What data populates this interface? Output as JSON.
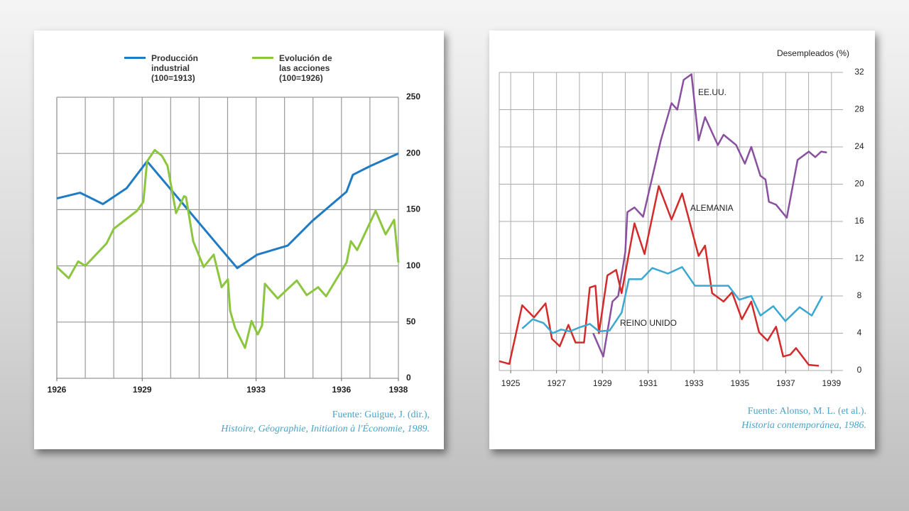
{
  "chart_data": [
    {
      "type": "line",
      "legend": "top",
      "xlim": [
        1926,
        1938
      ],
      "xticks": [
        1926,
        1929,
        1933,
        1936,
        1938
      ],
      "ylim": [
        0,
        250
      ],
      "yticks": [
        0,
        50,
        100,
        150,
        200,
        250
      ],
      "grid": true,
      "series": [
        {
          "name": "Producción\nindustrial\n(100=1913)",
          "color": "#1f7cc4",
          "x": [
            1926,
            1926.82,
            1927.62,
            1928.45,
            1929.17,
            1932.34,
            1933.04,
            1934.11,
            1934.98,
            1936.18,
            1936.4,
            1937.03,
            1938
          ],
          "values": [
            160,
            165,
            155,
            169,
            193,
            98,
            110,
            118,
            140,
            166,
            181,
            189,
            200
          ]
        },
        {
          "name": "Evolución de\nlas acciones\n(100=1926)",
          "color": "#8cc63f",
          "x": [
            1926,
            1926.42,
            1926.75,
            1927.0,
            1927.75,
            1928.0,
            1928.82,
            1929.04,
            1929.17,
            1929.44,
            1929.69,
            1929.89,
            1930.19,
            1930.47,
            1930.54,
            1930.79,
            1931.16,
            1931.51,
            1931.79,
            1932.01,
            1932.09,
            1932.26,
            1932.61,
            1932.84,
            1933.06,
            1933.21,
            1933.31,
            1933.76,
            1934.43,
            1934.78,
            1935.18,
            1935.46,
            1936.18,
            1936.33,
            1936.55,
            1937.2,
            1937.55,
            1937.85,
            1938
          ],
          "values": [
            99,
            89,
            104,
            100,
            120,
            133,
            149,
            157,
            193,
            203,
            198,
            189,
            147,
            162,
            161,
            122,
            99,
            110,
            81,
            88,
            60,
            45,
            27,
            51,
            39,
            47,
            84,
            71,
            87,
            74,
            81,
            73,
            103,
            122,
            114,
            149,
            128,
            141,
            103
          ]
        }
      ],
      "source": [
        "Fuente: Guigue, J. (dir.),",
        "Histoire, Géographie, Initiation à l'Économie, 1989."
      ]
    },
    {
      "type": "line",
      "legend": "inline",
      "y_label": "Desempleados (%)",
      "xlim": [
        1924.5,
        1939.5
      ],
      "xticks": [
        1925,
        1927,
        1929,
        1931,
        1933,
        1935,
        1937,
        1939
      ],
      "ylim": [
        0,
        32
      ],
      "yticks": [
        0,
        4,
        8,
        12,
        16,
        20,
        24,
        28,
        32
      ],
      "grid": true,
      "series": [
        {
          "name": "EE.UU.",
          "color": "#8a4fa0",
          "x": [
            1928.6,
            1929.04,
            1929.44,
            1929.69,
            1930.0,
            1930.09,
            1930.4,
            1930.78,
            1931.55,
            1932.02,
            1932.27,
            1932.55,
            1932.89,
            1933.2,
            1933.48,
            1934.04,
            1934.29,
            1934.84,
            1935.22,
            1935.5,
            1935.9,
            1936.12,
            1936.27,
            1936.58,
            1937.05,
            1937.52,
            1938.01,
            1938.29,
            1938.55,
            1938.8
          ],
          "values": [
            4,
            1.5,
            7.4,
            8,
            12.7,
            17,
            17.5,
            16.5,
            24.7,
            28.7,
            28,
            31.2,
            31.8,
            24.7,
            27.2,
            24.2,
            25.3,
            24.2,
            22.2,
            24,
            20.9,
            20.5,
            18.1,
            17.8,
            16.4,
            22.6,
            23.5,
            22.9,
            23.5,
            23.4
          ]
        },
        {
          "name": "ALEMANIA",
          "color": "#d42a2a",
          "x": [
            1924.5,
            1924.94,
            1925.5,
            1926.02,
            1926.52,
            1926.8,
            1927.14,
            1927.52,
            1927.83,
            1928.2,
            1928.45,
            1928.7,
            1928.85,
            1929.22,
            1929.6,
            1929.84,
            1930.4,
            1930.84,
            1931.46,
            1932.02,
            1932.48,
            1933.2,
            1933.48,
            1933.79,
            1934.29,
            1934.66,
            1935.09,
            1935.5,
            1935.84,
            1936.21,
            1936.58,
            1936.89,
            1937.2,
            1937.45,
            1938.01,
            1938.45
          ],
          "values": [
            1,
            0.7,
            7,
            5.7,
            7.2,
            3.4,
            2.6,
            4.9,
            3,
            3,
            8.9,
            9.1,
            4,
            10.2,
            10.8,
            8.3,
            15.8,
            12.5,
            19.8,
            16.2,
            19,
            12.3,
            13.4,
            8.3,
            7.4,
            8.4,
            5.5,
            7.4,
            4.1,
            3.2,
            4.7,
            1.5,
            1.7,
            2.4,
            0.6,
            0.5
          ]
        },
        {
          "name": "REINO UNIDO",
          "color": "#3aa8d0",
          "x": [
            1925.5,
            1925.96,
            1926.43,
            1926.83,
            1927.2,
            1927.58,
            1927.98,
            1928.45,
            1928.85,
            1929.32,
            1929.84,
            1930.16,
            1930.71,
            1931.18,
            1931.86,
            1932.48,
            1933.04,
            1934.5,
            1934.97,
            1935.5,
            1935.9,
            1936.46,
            1936.99,
            1937.61,
            1938.14,
            1938.6
          ],
          "values": [
            4.5,
            5.5,
            5.1,
            4,
            4.4,
            4.2,
            4.6,
            5,
            4.2,
            4.3,
            6.2,
            9.8,
            9.8,
            11,
            10.4,
            11.1,
            9.1,
            9.1,
            7.6,
            8,
            5.9,
            6.9,
            5.3,
            6.8,
            5.9,
            8
          ]
        }
      ],
      "source": [
        "Fuente: Alonso, M. L. (et al.).",
        "Historia contemporánea, 1986."
      ]
    }
  ]
}
